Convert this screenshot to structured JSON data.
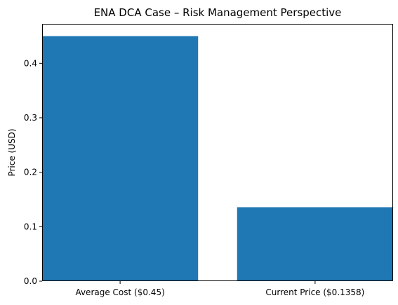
{
  "chart_data": {
    "type": "bar",
    "title": "ENA DCA Case – Risk Management Perspective",
    "xlabel": "",
    "ylabel": "Price (USD)",
    "categories": [
      "Average Cost ($0.45)",
      "Current Price ($0.1358)"
    ],
    "values": [
      0.45,
      0.1358
    ],
    "ylim": [
      0,
      0.4725
    ],
    "yticks": [
      0.0,
      0.1,
      0.2,
      0.3,
      0.4
    ],
    "ytick_labels": [
      "0.0",
      "0.1",
      "0.2",
      "0.3",
      "0.4"
    ],
    "bar_color": "#1f77b4",
    "grid": false,
    "legend": "none"
  }
}
